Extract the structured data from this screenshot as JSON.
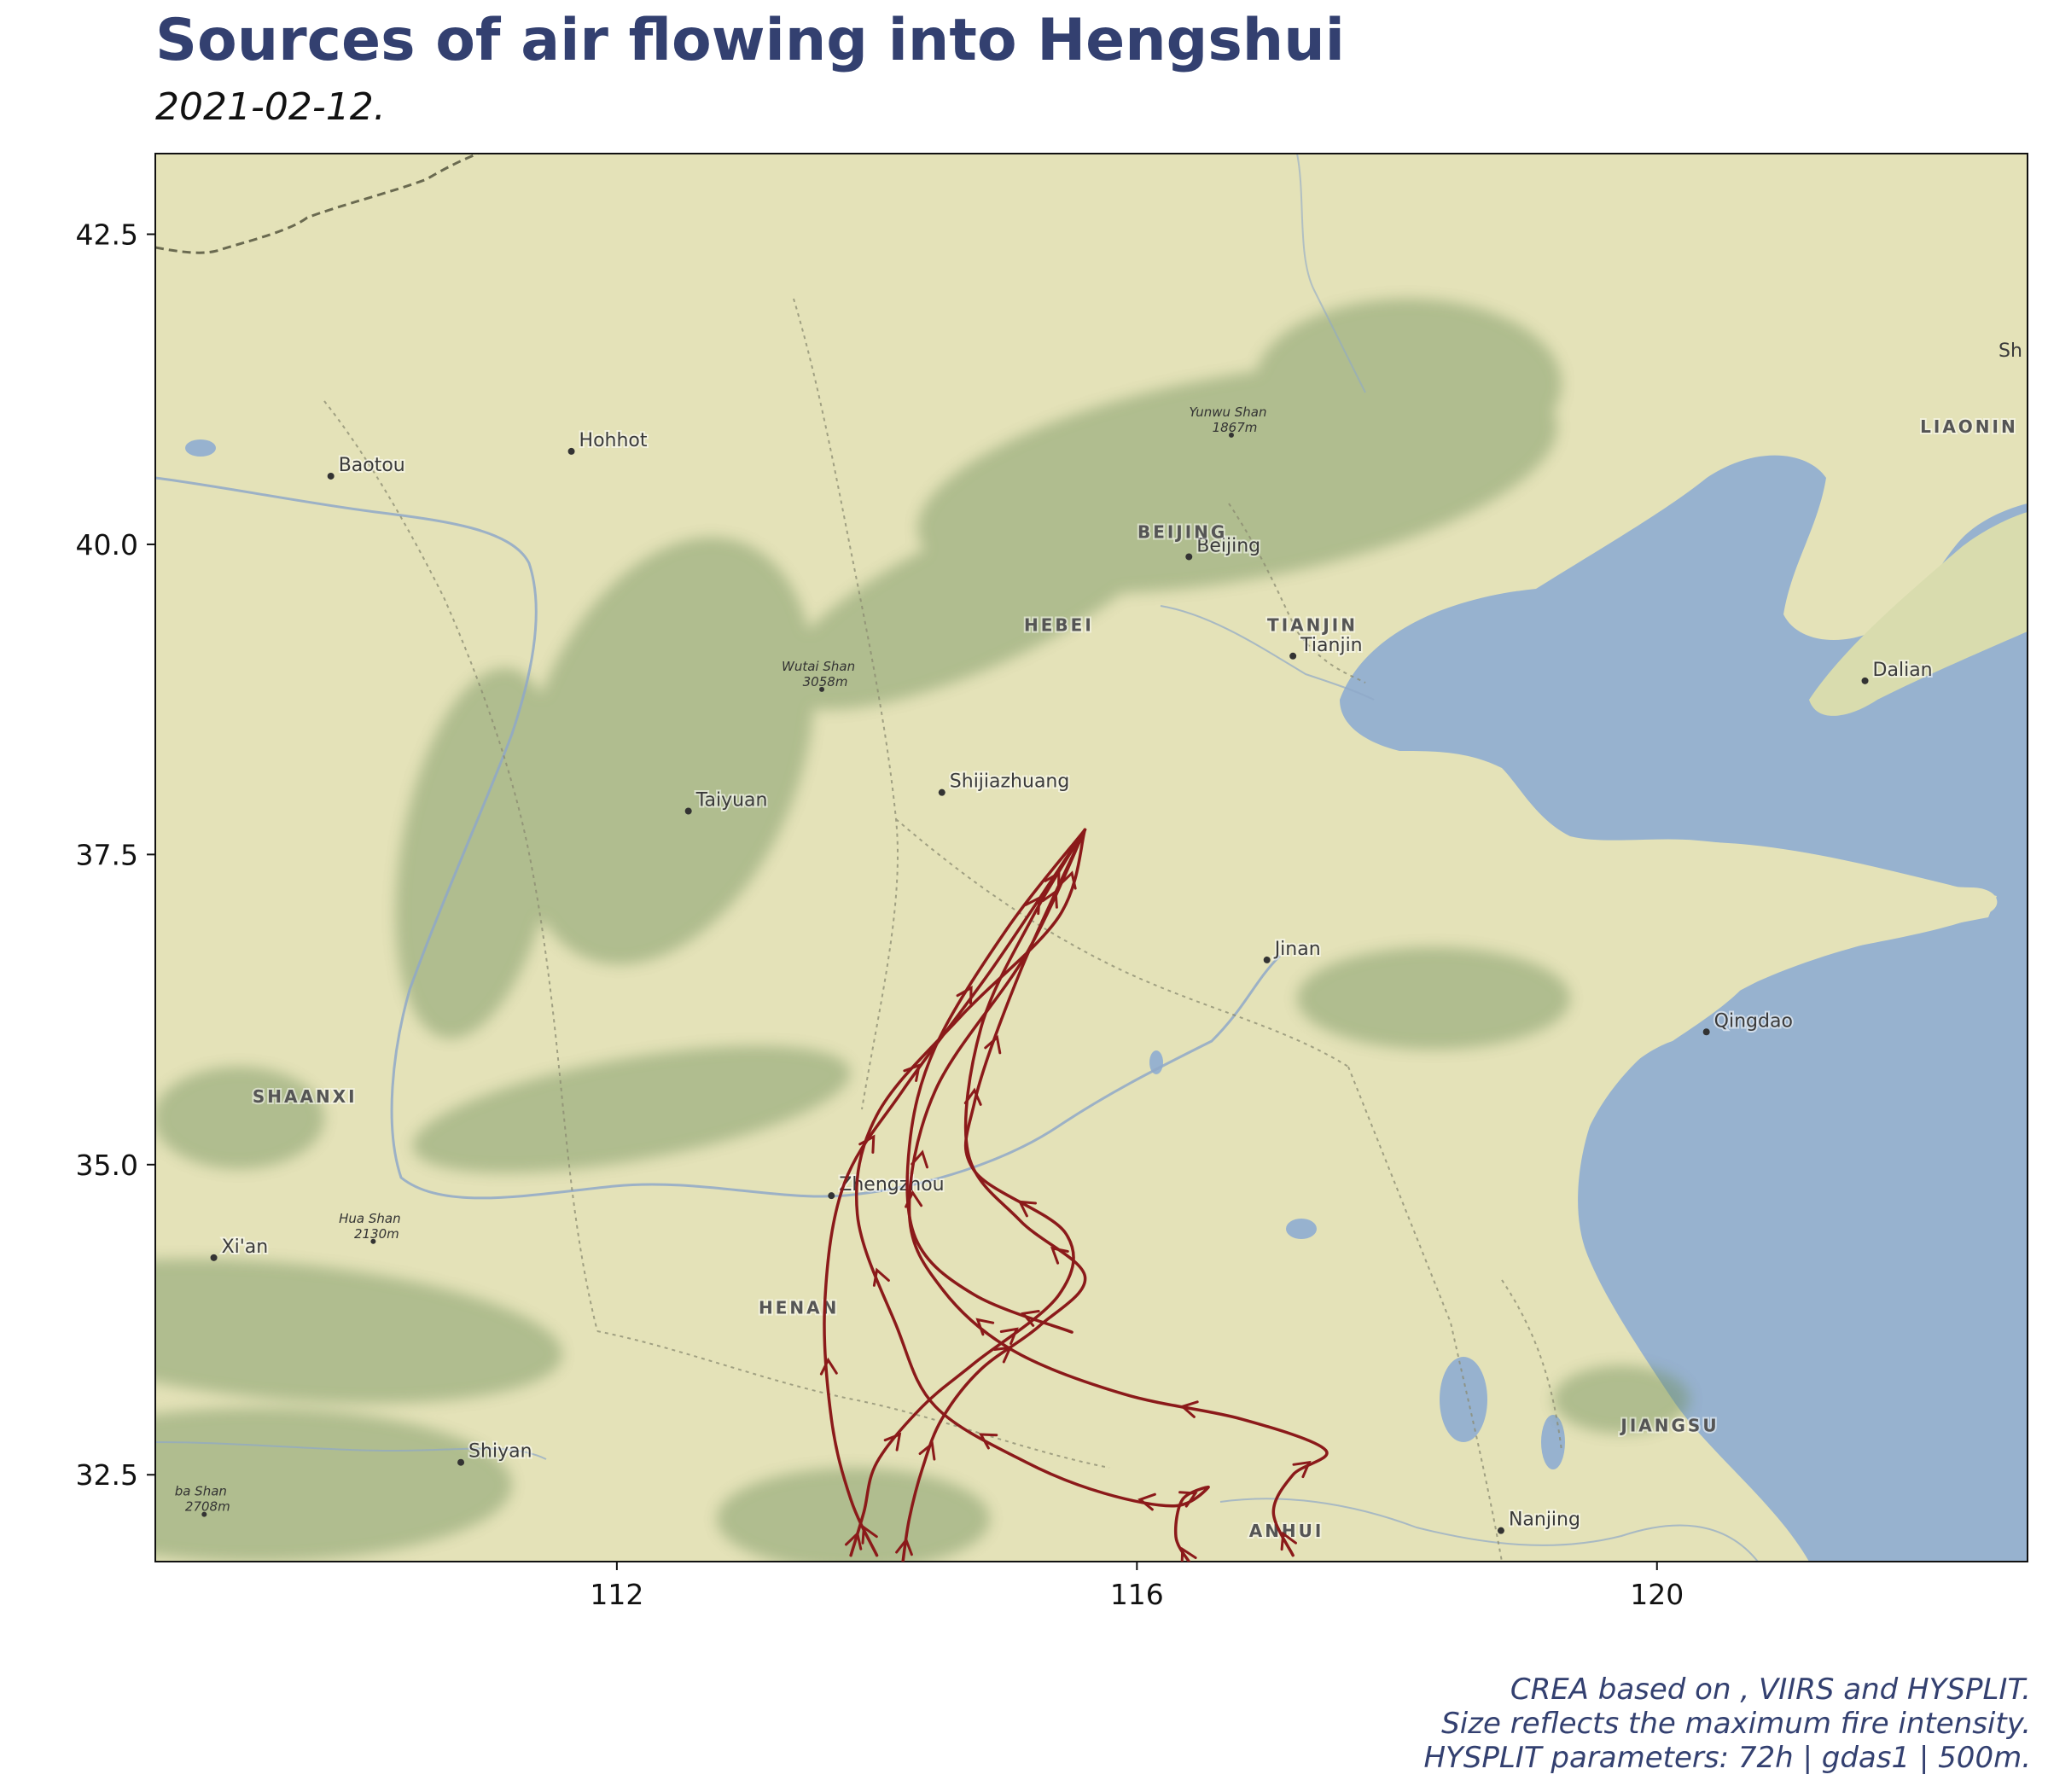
{
  "title": "Sources of air flowing into Hengshui",
  "subtitle": "2021-02-12.",
  "caption": [
    "CREA based on , VIIRS and HYSPLIT.",
    "Size reflects the maximum fire intensity.",
    "HYSPLIT parameters: 72h | gdas1 | 500m."
  ],
  "map": {
    "extent": {
      "lon": [
        108.45,
        122.85
      ],
      "lat": [
        31.8,
        43.15
      ]
    },
    "x_ticks": [
      112,
      116,
      120
    ],
    "y_ticks": [
      32.5,
      35.0,
      37.5,
      40.0,
      42.5
    ],
    "colors": {
      "land": "#e4e2b8",
      "water": "#97b2cf",
      "mountain": "#6f8f5c",
      "trajectory": "#8b1a1a"
    },
    "places": [
      {
        "name": "Baotou",
        "lon": 109.8,
        "lat": 40.55
      },
      {
        "name": "Hohhot",
        "lon": 111.65,
        "lat": 40.75
      },
      {
        "name": "Beijing",
        "lon": 116.4,
        "lat": 39.9
      },
      {
        "name": "Tianjin",
        "lon": 117.2,
        "lat": 39.1
      },
      {
        "name": "Shijiazhuang",
        "lon": 114.5,
        "lat": 38.0
      },
      {
        "name": "Taiyuan",
        "lon": 112.55,
        "lat": 37.85
      },
      {
        "name": "Jinan",
        "lon": 117.0,
        "lat": 36.65
      },
      {
        "name": "Qingdao",
        "lon": 120.38,
        "lat": 36.07
      },
      {
        "name": "Dalian",
        "lon": 121.6,
        "lat": 38.9
      },
      {
        "name": "Zhengzhou",
        "lon": 113.65,
        "lat": 34.75
      },
      {
        "name": "Xi'an",
        "lon": 108.9,
        "lat": 34.25
      },
      {
        "name": "Shiyan",
        "lon": 110.8,
        "lat": 32.6
      },
      {
        "name": "Nanjing",
        "lon": 118.8,
        "lat": 32.05
      }
    ],
    "regions": [
      {
        "name": "BEIJING",
        "lon": 116.35,
        "lat": 40.05
      },
      {
        "name": "HEBEI",
        "lon": 115.4,
        "lat": 39.3
      },
      {
        "name": "TIANJIN",
        "lon": 117.35,
        "lat": 39.3
      },
      {
        "name": "SHAANXI",
        "lon": 109.6,
        "lat": 35.5
      },
      {
        "name": "HENAN",
        "lon": 113.4,
        "lat": 33.8
      },
      {
        "name": "JIANGSU",
        "lon": 120.1,
        "lat": 32.85
      },
      {
        "name": "ANHUI",
        "lon": 117.15,
        "lat": 32.0
      },
      {
        "name": "LIAONIN",
        "lon": 122.4,
        "lat": 40.9
      }
    ],
    "peaks": [
      {
        "name": "Yunwu Shan",
        "elevation": "1867m",
        "lon": 116.7,
        "lat": 40.95
      },
      {
        "name": "Wutai Shan",
        "elevation": "3058m",
        "lon": 113.55,
        "lat": 38.9
      },
      {
        "name": "Hua Shan",
        "elevation": "2130m",
        "lon": 110.1,
        "lat": 34.45
      },
      {
        "name": "ba Shan",
        "elevation": "2708m",
        "lon": 108.8,
        "lat": 32.25
      }
    ],
    "edge_label": "Sh",
    "trajectories": [
      [
        [
          115.6,
          37.7
        ],
        [
          115.0,
          36.9
        ],
        [
          114.45,
          35.95
        ],
        [
          114.25,
          35.15
        ],
        [
          114.3,
          34.4
        ],
        [
          114.75,
          33.95
        ],
        [
          115.5,
          33.65
        ]
      ],
      [
        [
          115.6,
          37.7
        ],
        [
          114.9,
          36.6
        ],
        [
          114.2,
          35.6
        ],
        [
          113.75,
          34.85
        ],
        [
          113.6,
          33.9
        ],
        [
          113.65,
          32.95
        ],
        [
          113.8,
          32.3
        ],
        [
          114.0,
          31.85
        ]
      ],
      [
        [
          115.6,
          37.7
        ],
        [
          115.2,
          37.0
        ],
        [
          114.8,
          36.1
        ],
        [
          114.7,
          35.1
        ],
        [
          115.1,
          34.55
        ],
        [
          115.6,
          34.1
        ],
        [
          115.25,
          33.7
        ],
        [
          114.8,
          33.35
        ],
        [
          114.5,
          32.95
        ],
        [
          114.35,
          32.55
        ],
        [
          114.25,
          32.15
        ],
        [
          114.2,
          31.8
        ]
      ],
      [
        [
          115.6,
          37.7
        ],
        [
          115.15,
          36.7
        ],
        [
          114.45,
          35.6
        ],
        [
          114.25,
          34.6
        ],
        [
          114.5,
          34.0
        ],
        [
          115.05,
          33.5
        ],
        [
          115.9,
          33.15
        ],
        [
          116.8,
          32.95
        ],
        [
          117.45,
          32.7
        ],
        [
          117.2,
          32.5
        ],
        [
          117.05,
          32.2
        ],
        [
          117.2,
          31.85
        ]
      ],
      [
        [
          115.6,
          37.7
        ],
        [
          115.4,
          37.0
        ],
        [
          114.65,
          36.2
        ],
        [
          114.0,
          35.4
        ],
        [
          113.85,
          34.6
        ],
        [
          114.15,
          33.7
        ],
        [
          114.45,
          33.05
        ],
        [
          115.15,
          32.6
        ],
        [
          115.75,
          32.35
        ],
        [
          116.3,
          32.25
        ],
        [
          116.55,
          32.4
        ],
        [
          116.35,
          32.3
        ],
        [
          116.3,
          32.0
        ],
        [
          116.4,
          31.8
        ]
      ],
      [
        [
          115.6,
          37.7
        ],
        [
          115.1,
          36.55
        ],
        [
          114.75,
          35.5
        ],
        [
          114.75,
          34.95
        ],
        [
          115.45,
          34.45
        ],
        [
          115.4,
          33.95
        ],
        [
          114.75,
          33.4
        ],
        [
          114.35,
          33.05
        ],
        [
          114.0,
          32.6
        ],
        [
          113.9,
          32.2
        ],
        [
          113.8,
          31.85
        ]
      ]
    ]
  }
}
